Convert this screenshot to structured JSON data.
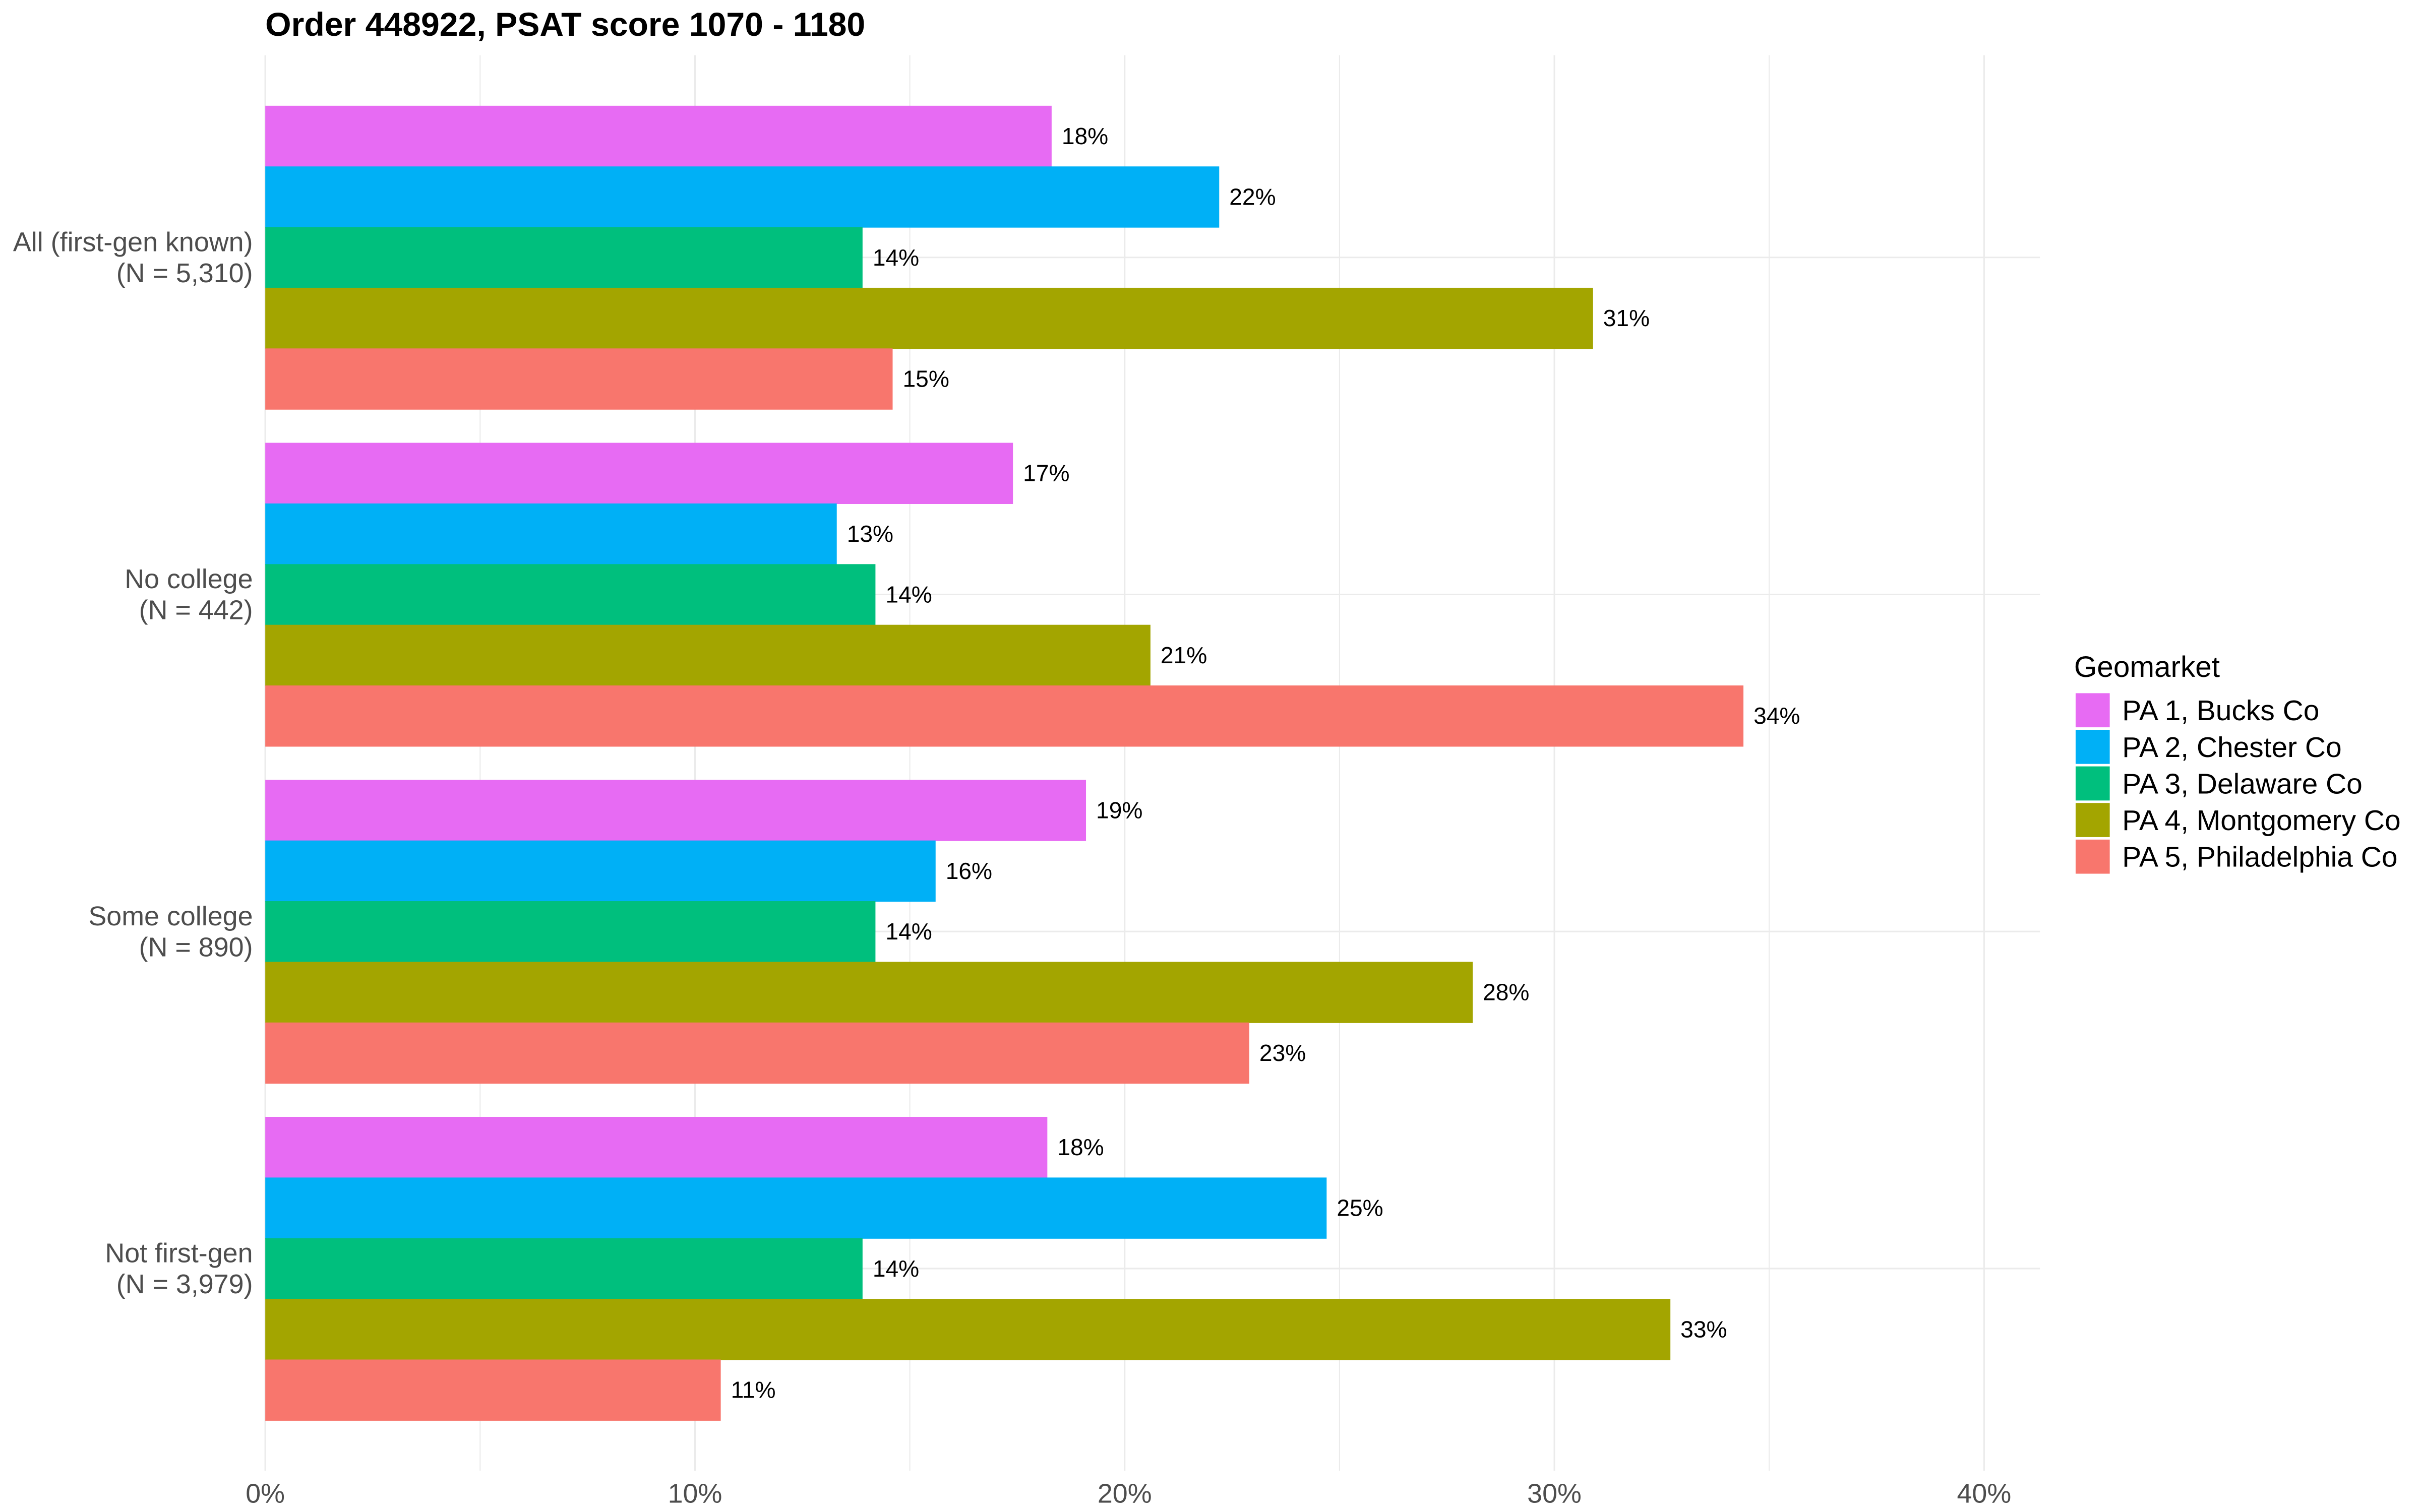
{
  "chart_data": {
    "type": "bar",
    "orientation": "horizontal",
    "title": "Order 448922, PSAT score 1070 - 1180",
    "categories": [
      [
        "All (first-gen known)",
        "(N = 5,310)"
      ],
      [
        "No college",
        "(N = 442)"
      ],
      [
        "Some college",
        "(N = 890)"
      ],
      [
        "Not first-gen",
        "(N = 3,979)"
      ]
    ],
    "xticks": [
      0,
      10,
      20,
      30,
      40
    ],
    "xtick_labels": [
      "0%",
      "10%",
      "20%",
      "30%",
      "40%"
    ],
    "xlim": [
      0,
      41.3
    ],
    "grid": true,
    "legend": {
      "title": "Geomarket",
      "position": "right"
    },
    "series": [
      {
        "name": "PA 1, Bucks Co",
        "color": "#E76BF3",
        "values": [
          18.3,
          17.4,
          19.1,
          18.2
        ],
        "labels": [
          "18%",
          "17%",
          "19%",
          "18%"
        ]
      },
      {
        "name": "PA 2, Chester Co",
        "color": "#00B0F6",
        "values": [
          22.2,
          13.3,
          15.6,
          24.7
        ],
        "labels": [
          "22%",
          "13%",
          "16%",
          "25%"
        ]
      },
      {
        "name": "PA 3, Delaware Co",
        "color": "#00BF7D",
        "values": [
          13.9,
          14.2,
          14.2,
          13.9
        ],
        "labels": [
          "14%",
          "14%",
          "14%",
          "14%"
        ]
      },
      {
        "name": "PA 4, Montgomery Co",
        "color": "#A3A500",
        "values": [
          30.9,
          20.6,
          28.1,
          32.7
        ],
        "labels": [
          "31%",
          "21%",
          "28%",
          "33%"
        ]
      },
      {
        "name": "PA 5, Philadelphia Co",
        "color": "#F8766D",
        "values": [
          14.6,
          34.4,
          22.9,
          10.6
        ],
        "labels": [
          "15%",
          "34%",
          "23%",
          "11%"
        ]
      }
    ]
  }
}
